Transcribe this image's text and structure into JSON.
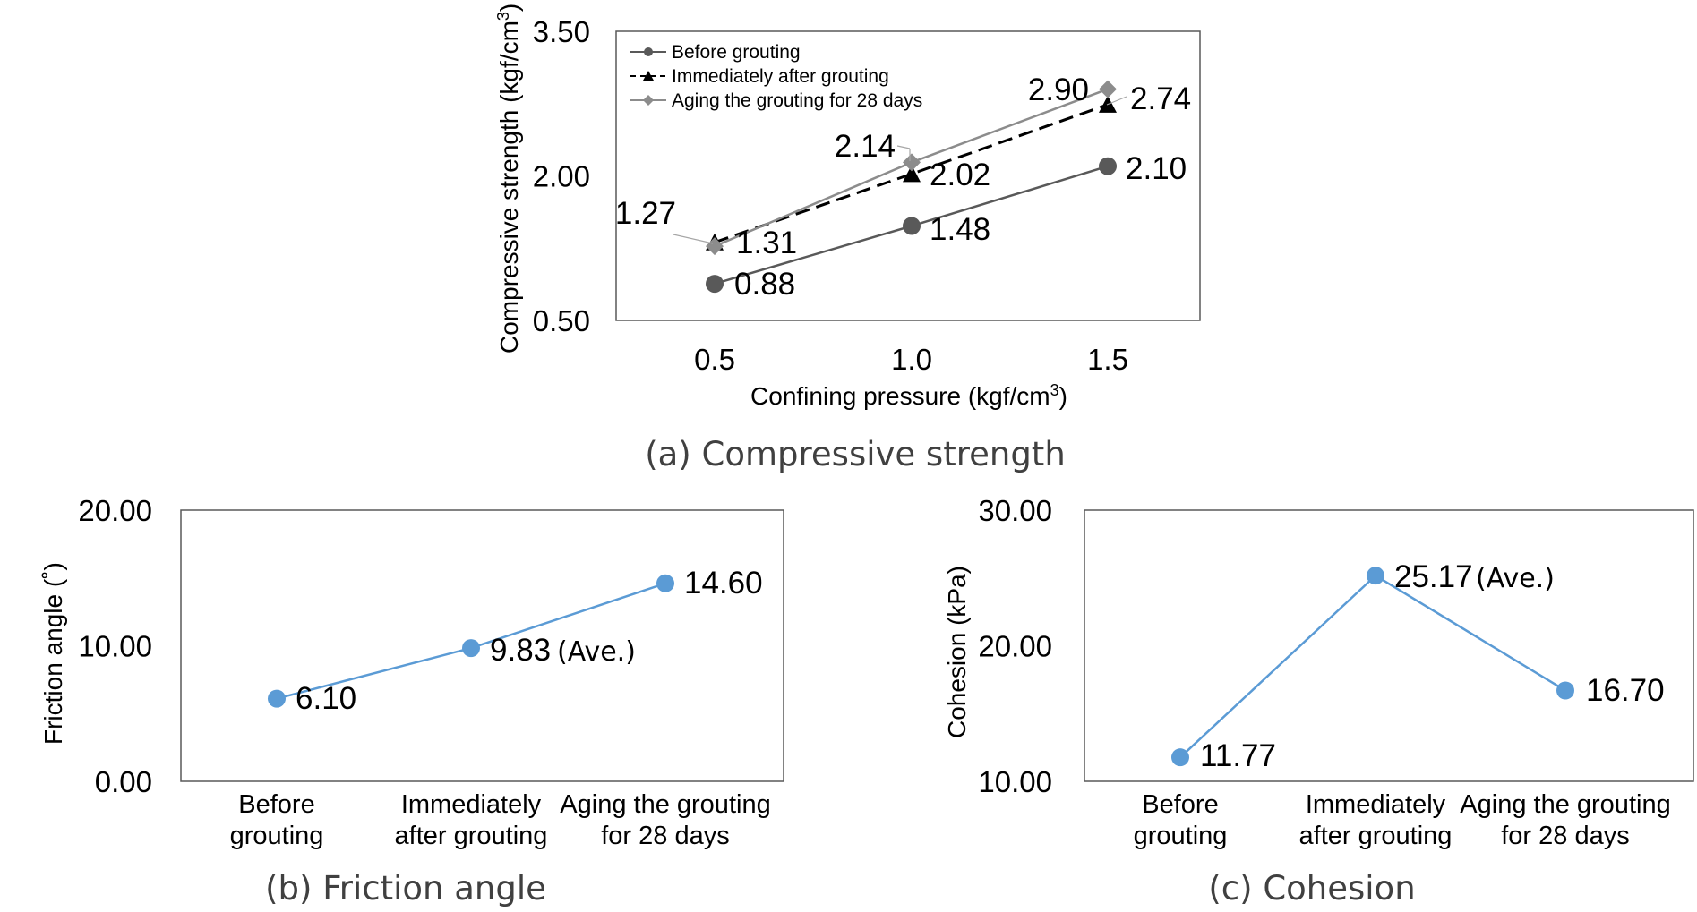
{
  "chart_data": [
    {
      "type": "line",
      "caption": "(a) Compressive strength",
      "xlabel": "Confining pressure (kgf/cm",
      "xlabel_sup": "3",
      "xlabel_end": ")",
      "ylabel": "Compressive strength (kgf/cm",
      "ylabel_sup": "3",
      "ylabel_end": ")",
      "x": [
        0.5,
        1.0,
        1.5
      ],
      "x_tick_labels": [
        "0.5",
        "1.0",
        "1.5"
      ],
      "y_tick_labels": [
        "0.50",
        "2.00",
        "3.50"
      ],
      "ylim": [
        0.5,
        3.5
      ],
      "series": [
        {
          "name": "Before grouting",
          "values": [
            0.88,
            1.48,
            2.1
          ],
          "labels": [
            "0.88",
            "1.48",
            "2.10"
          ],
          "color": "#595959",
          "marker": "circle",
          "dash": "solid"
        },
        {
          "name": "Immediately after grouting",
          "values": [
            1.31,
            2.02,
            2.74
          ],
          "labels": [
            "1.31",
            "2.02",
            "2.74"
          ],
          "color": "#000000",
          "marker": "triangle",
          "dash": "dashed"
        },
        {
          "name": "Aging the grouting for 28 days",
          "values": [
            1.27,
            2.14,
            2.9
          ],
          "labels": [
            "1.27",
            "2.14",
            "2.90"
          ],
          "color": "#8c8c8c",
          "marker": "diamond",
          "dash": "solid"
        }
      ]
    },
    {
      "type": "line",
      "caption": "(b) Friction angle",
      "ylabel": "Friction angle (˚)",
      "categories": [
        [
          "Before",
          "grouting"
        ],
        [
          "Immediately",
          "after grouting"
        ],
        [
          "Aging the grouting",
          "for 28 days"
        ]
      ],
      "y_tick_labels": [
        "0.00",
        "10.00",
        "20.00"
      ],
      "ylim": [
        0,
        20
      ],
      "values": [
        6.1,
        9.83,
        14.6
      ],
      "labels": [
        "6.10",
        "9.83",
        "14.60"
      ],
      "ave_note": "(Ave.)",
      "color": "#5b9bd5"
    },
    {
      "type": "line",
      "caption": "(c) Cohesion",
      "ylabel": "Cohesion (kPa)",
      "categories": [
        [
          "Before",
          "grouting"
        ],
        [
          "Immediately",
          "after grouting"
        ],
        [
          "Aging the grouting",
          "for 28 days"
        ]
      ],
      "y_tick_labels": [
        "10.00",
        "20.00",
        "30.00"
      ],
      "ylim": [
        10,
        30
      ],
      "values": [
        11.77,
        25.17,
        16.7
      ],
      "labels": [
        "11.77",
        "25.17",
        "16.70"
      ],
      "ave_note": "(Ave.)",
      "color": "#5b9bd5"
    }
  ]
}
